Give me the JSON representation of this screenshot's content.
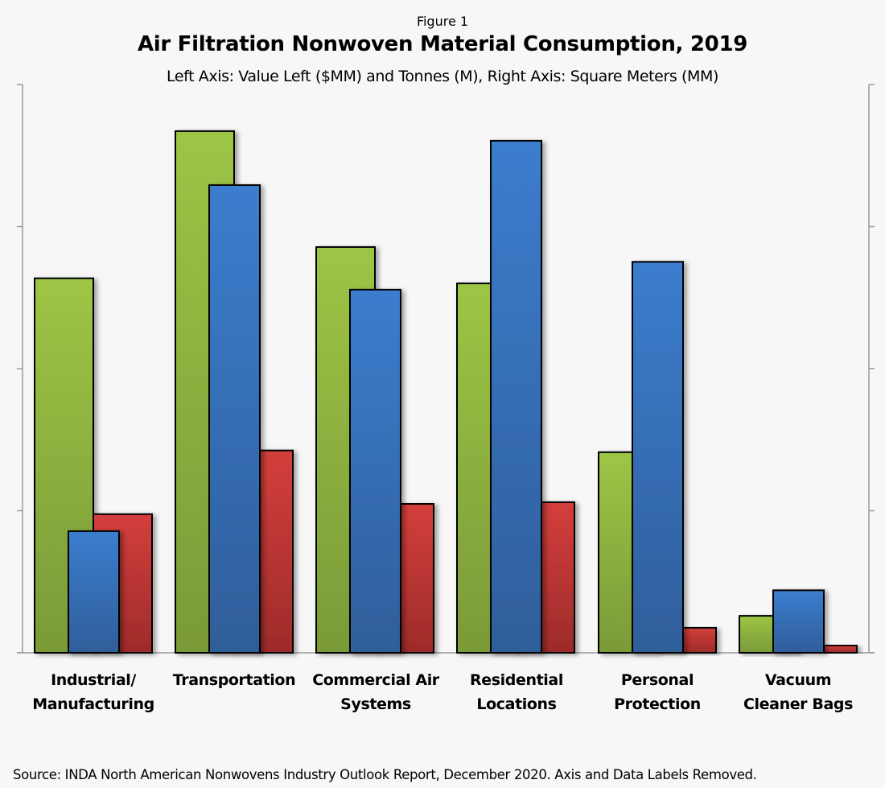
{
  "figure_label": "Figure 1",
  "source_note": "Source: INDA North American Nonwovens Industry Outlook Report, December 2020. Axis and Data Labels Removed.",
  "colors": {
    "background": "#f7f7f7",
    "value_top": "#9dc545",
    "value_bottom": "#7a9a38",
    "tonnes_top": "#3b7dce",
    "tonnes_bottom": "#2f5e9a",
    "sqm_top": "#d33f3c",
    "sqm_bottom": "#9e2b2a",
    "axis": "#999999"
  },
  "chart_data": {
    "type": "bar",
    "title": "Air Filtration Nonwoven Material Consumption, 2019",
    "subtitle": "Left Axis: Value Left ($MM) and Tonnes (M), Right Axis: Square Meters (MM)",
    "xlabel": "",
    "ylabel": "",
    "grid": false,
    "legend": "none",
    "note": "Axis tick labels removed in original; values are relative (0-100 of axis range)",
    "ylim": [
      0,
      100
    ],
    "yticks": [
      0,
      25,
      50,
      75,
      100
    ],
    "categories": [
      [
        "Industrial/",
        "Manufacturing"
      ],
      [
        "Transportation"
      ],
      [
        "Commercial Air",
        "Systems"
      ],
      [
        "Residential",
        "Locations"
      ],
      [
        "Personal",
        "Protection"
      ],
      [
        "Vacuum",
        "Cleaner Bags"
      ]
    ],
    "series": [
      {
        "name": "Value ($MM)",
        "axis": "left",
        "color_key": "value",
        "values": [
          65.9,
          91.8,
          71.4,
          65.0,
          35.3,
          6.5
        ]
      },
      {
        "name": "Tonnes (M)",
        "axis": "left",
        "color_key": "tonnes",
        "values": [
          21.4,
          82.3,
          63.9,
          90.1,
          68.8,
          11.0
        ]
      },
      {
        "name": "Square Meters (MM)",
        "axis": "right",
        "color_key": "sqm",
        "values": [
          24.4,
          35.6,
          26.2,
          26.5,
          4.4,
          1.3
        ]
      }
    ]
  }
}
